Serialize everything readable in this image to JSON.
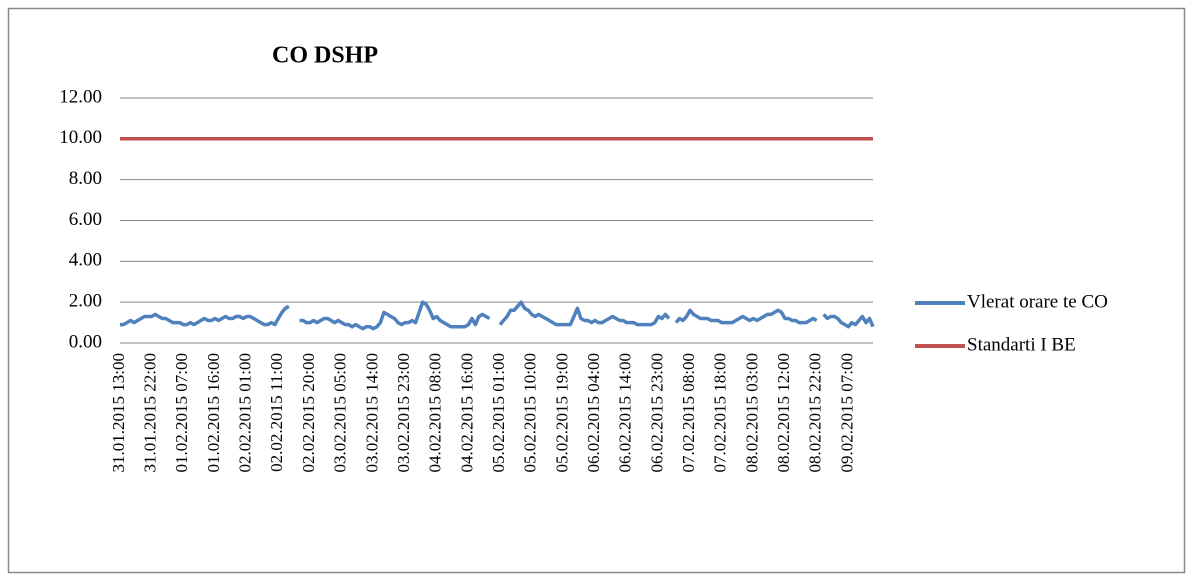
{
  "chart_data": {
    "type": "line",
    "title": "CO DSHP",
    "categories": [
      "31.01.2015 13:00",
      null,
      null,
      null,
      null,
      null,
      null,
      null,
      null,
      "31.01.2015 22:00",
      null,
      null,
      null,
      null,
      null,
      null,
      null,
      null,
      "01.02.2015 07:00",
      null,
      null,
      null,
      null,
      null,
      null,
      null,
      null,
      "01.02.2015 16:00",
      null,
      null,
      null,
      null,
      null,
      null,
      null,
      null,
      "02.02.2015 01:00",
      null,
      null,
      null,
      null,
      null,
      null,
      null,
      null,
      "02.02.2015 11:00",
      null,
      null,
      null,
      null,
      null,
      null,
      null,
      null,
      "02.02.2015 20:00",
      null,
      null,
      null,
      null,
      null,
      null,
      null,
      null,
      "03.02.2015 05:00",
      null,
      null,
      null,
      null,
      null,
      null,
      null,
      null,
      "03.02.2015 14:00",
      null,
      null,
      null,
      null,
      null,
      null,
      null,
      null,
      "03.02.2015 23:00",
      null,
      null,
      null,
      null,
      null,
      null,
      null,
      null,
      "04.02.2015 08:00",
      null,
      null,
      null,
      null,
      null,
      null,
      null,
      null,
      "04.02.2015 16:00",
      null,
      null,
      null,
      null,
      null,
      null,
      null,
      null,
      "05.02.2015 01:00",
      null,
      null,
      null,
      null,
      null,
      null,
      null,
      null,
      "05.02.2015 10:00",
      null,
      null,
      null,
      null,
      null,
      null,
      null,
      null,
      "05.02.2015 19:00",
      null,
      null,
      null,
      null,
      null,
      null,
      null,
      null,
      "06.02.2015 04:00",
      null,
      null,
      null,
      null,
      null,
      null,
      null,
      null,
      "06.02.2015 14:00",
      null,
      null,
      null,
      null,
      null,
      null,
      null,
      null,
      "06.02.2015 23:00",
      null,
      null,
      null,
      null,
      null,
      null,
      null,
      null,
      "07.02.2015 08:00",
      null,
      null,
      null,
      null,
      null,
      null,
      null,
      null,
      "07.02.2015 18:00",
      null,
      null,
      null,
      null,
      null,
      null,
      null,
      null,
      "08.02.2015 03:00",
      null,
      null,
      null,
      null,
      null,
      null,
      null,
      null,
      "08.02.2015 12:00",
      null,
      null,
      null,
      null,
      null,
      null,
      null,
      null,
      "08.02.2015 22:00",
      null,
      null,
      null,
      null,
      null,
      null,
      null,
      null,
      "09.02.2015 07:00",
      null,
      null,
      null,
      null,
      null,
      null,
      null
    ],
    "series": [
      {
        "name": "Vlerat orare te CO",
        "color": "#4f81bd",
        "values": [
          0.9,
          0.9,
          1.0,
          1.1,
          1.0,
          1.1,
          1.2,
          1.3,
          1.3,
          1.3,
          1.4,
          1.3,
          1.2,
          1.2,
          1.1,
          1.0,
          1.0,
          1.0,
          0.9,
          0.9,
          1.0,
          0.9,
          1.0,
          1.1,
          1.2,
          1.1,
          1.1,
          1.2,
          1.1,
          1.2,
          1.3,
          1.2,
          1.2,
          1.3,
          1.3,
          1.2,
          1.3,
          1.3,
          1.2,
          1.1,
          1.0,
          0.9,
          0.9,
          1.0,
          0.9,
          1.2,
          1.5,
          1.7,
          1.8,
          null,
          null,
          1.1,
          1.1,
          1.0,
          1.0,
          1.1,
          1.0,
          1.1,
          1.2,
          1.2,
          1.1,
          1.0,
          1.1,
          1.0,
          0.9,
          0.9,
          0.8,
          0.9,
          0.8,
          0.7,
          0.8,
          0.8,
          0.7,
          0.8,
          1.0,
          1.5,
          1.4,
          1.3,
          1.2,
          1.0,
          0.9,
          1.0,
          1.0,
          1.1,
          1.0,
          1.5,
          2.0,
          1.9,
          1.6,
          1.2,
          1.3,
          1.1,
          1.0,
          0.9,
          0.8,
          0.8,
          0.8,
          0.8,
          0.8,
          0.9,
          1.2,
          0.9,
          1.3,
          1.4,
          1.3,
          1.2,
          null,
          null,
          0.9,
          1.1,
          1.3,
          1.6,
          1.6,
          1.8,
          2.0,
          1.7,
          1.6,
          1.4,
          1.3,
          1.4,
          1.3,
          1.2,
          1.1,
          1.0,
          0.9,
          0.9,
          0.9,
          0.9,
          0.9,
          1.3,
          1.7,
          1.2,
          1.1,
          1.1,
          1.0,
          1.1,
          1.0,
          1.0,
          1.1,
          1.2,
          1.3,
          1.2,
          1.1,
          1.1,
          1.0,
          1.0,
          1.0,
          0.9,
          0.9,
          0.9,
          0.9,
          0.9,
          1.0,
          1.3,
          1.2,
          1.4,
          1.2,
          null,
          1.0,
          1.2,
          1.1,
          1.3,
          1.6,
          1.4,
          1.3,
          1.2,
          1.2,
          1.2,
          1.1,
          1.1,
          1.1,
          1.0,
          1.0,
          1.0,
          1.0,
          1.1,
          1.2,
          1.3,
          1.2,
          1.1,
          1.2,
          1.1,
          1.2,
          1.3,
          1.4,
          1.4,
          1.5,
          1.6,
          1.5,
          1.2,
          1.2,
          1.1,
          1.1,
          1.0,
          1.0,
          1.0,
          1.1,
          1.2,
          1.1,
          null,
          1.4,
          1.2,
          1.3,
          1.3,
          1.2,
          1.0,
          0.9,
          0.8,
          1.0,
          0.9,
          1.1,
          1.3,
          1.0,
          1.2,
          0.8
        ]
      },
      {
        "name": "Standarti I BE",
        "color": "#c0504d",
        "values": [
          10,
          10,
          10,
          10,
          10,
          10,
          10,
          10,
          10,
          10,
          10,
          10,
          10,
          10,
          10,
          10,
          10,
          10,
          10,
          10,
          10,
          10,
          10,
          10,
          10,
          10,
          10,
          10,
          10,
          10,
          10,
          10,
          10,
          10,
          10,
          10,
          10,
          10,
          10,
          10,
          10,
          10,
          10,
          10,
          10,
          10,
          10,
          10,
          10,
          10,
          10,
          10,
          10,
          10,
          10,
          10,
          10,
          10,
          10,
          10,
          10,
          10,
          10,
          10,
          10,
          10,
          10,
          10,
          10,
          10,
          10,
          10,
          10,
          10,
          10,
          10,
          10,
          10,
          10,
          10,
          10,
          10,
          10,
          10,
          10,
          10,
          10,
          10,
          10,
          10,
          10,
          10,
          10,
          10,
          10,
          10,
          10,
          10,
          10,
          10,
          10,
          10,
          10,
          10,
          10,
          10,
          10,
          10,
          10,
          10,
          10,
          10,
          10,
          10,
          10,
          10,
          10,
          10,
          10,
          10,
          10,
          10,
          10,
          10,
          10,
          10,
          10,
          10,
          10,
          10,
          10,
          10,
          10,
          10,
          10,
          10,
          10,
          10,
          10,
          10,
          10,
          10,
          10,
          10,
          10,
          10,
          10,
          10,
          10,
          10,
          10,
          10,
          10,
          10,
          10,
          10,
          10,
          10,
          10,
          10,
          10,
          10,
          10,
          10,
          10,
          10,
          10,
          10,
          10,
          10,
          10,
          10,
          10,
          10,
          10,
          10,
          10,
          10,
          10,
          10,
          10,
          10,
          10,
          10,
          10,
          10,
          10,
          10,
          10,
          10,
          10,
          10,
          10,
          10,
          10,
          10,
          10,
          10,
          10,
          10,
          10,
          10,
          10,
          10,
          10,
          10,
          10,
          10,
          10,
          10,
          10,
          10,
          10,
          10,
          10
        ]
      }
    ],
    "ylim": [
      0,
      12
    ],
    "yticks": [
      {
        "value": 0,
        "label": "0.00"
      },
      {
        "value": 2,
        "label": "2.00"
      },
      {
        "value": 4,
        "label": "4.00"
      },
      {
        "value": 6,
        "label": "6.00"
      },
      {
        "value": 8,
        "label": "8.00"
      },
      {
        "value": 10,
        "label": "10.00"
      },
      {
        "value": 12,
        "label": "12.00"
      }
    ],
    "grid": true,
    "legend": "right"
  }
}
